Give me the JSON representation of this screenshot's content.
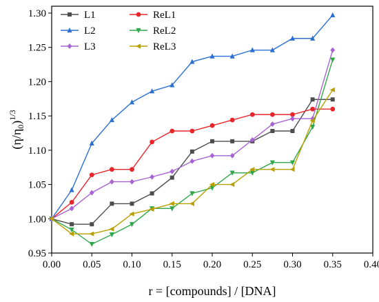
{
  "chart_data": {
    "type": "line",
    "xlabel": "r = [compounds] / [DNA]",
    "ylabel_main": "(η/η",
    "ylabel_sub": "0",
    "ylabel_close": ")",
    "ylabel_sup": "1/3",
    "xlim": [
      0.0,
      0.4
    ],
    "ylim": [
      0.95,
      1.31
    ],
    "xticks": [
      "0.00",
      "0.05",
      "0.10",
      "0.15",
      "0.20",
      "0.25",
      "0.30",
      "0.35",
      "0.40"
    ],
    "yticks": [
      "0.95",
      "1.00",
      "1.05",
      "1.10",
      "1.15",
      "1.20",
      "1.25",
      "1.30"
    ],
    "grid": false,
    "legend_position": "top-left",
    "x": [
      0.0,
      0.025,
      0.05,
      0.075,
      0.1,
      0.125,
      0.15,
      0.175,
      0.2,
      0.225,
      0.25,
      0.275,
      0.3,
      0.325,
      0.35
    ],
    "series": [
      {
        "name": "L1",
        "color": "#4d4d4d",
        "marker": "square",
        "values": [
          1.0,
          0.992,
          0.992,
          1.022,
          1.022,
          1.037,
          1.06,
          1.098,
          1.113,
          1.113,
          1.113,
          1.128,
          1.128,
          1.174,
          1.174
        ]
      },
      {
        "name": "ReL1",
        "color": "#e8262a",
        "marker": "circle",
        "values": [
          1.0,
          1.024,
          1.064,
          1.072,
          1.072,
          1.112,
          1.128,
          1.128,
          1.136,
          1.144,
          1.152,
          1.152,
          1.152,
          1.16,
          1.16
        ]
      },
      {
        "name": "L2",
        "color": "#2b6fd1",
        "marker": "triangle-up",
        "values": [
          1.0,
          1.042,
          1.11,
          1.144,
          1.17,
          1.186,
          1.195,
          1.229,
          1.237,
          1.237,
          1.246,
          1.246,
          1.263,
          1.263,
          1.297
        ]
      },
      {
        "name": "ReL2",
        "color": "#2ea84b",
        "marker": "triangle-down",
        "values": [
          1.0,
          0.984,
          0.963,
          0.977,
          0.992,
          1.015,
          1.015,
          1.037,
          1.045,
          1.067,
          1.067,
          1.082,
          1.082,
          1.134,
          1.232
        ]
      },
      {
        "name": "L3",
        "color": "#a763d3",
        "marker": "diamond",
        "values": [
          1.0,
          1.015,
          1.038,
          1.054,
          1.054,
          1.061,
          1.069,
          1.084,
          1.092,
          1.092,
          1.115,
          1.138,
          1.146,
          1.146,
          1.246
        ]
      },
      {
        "name": "ReL3",
        "color": "#b9a000",
        "marker": "triangle-left",
        "values": [
          1.0,
          0.978,
          0.978,
          0.985,
          1.007,
          1.014,
          1.022,
          1.022,
          1.05,
          1.05,
          1.072,
          1.072,
          1.072,
          1.143,
          1.188
        ]
      }
    ],
    "legend_order": [
      "L1",
      "ReL1",
      "L2",
      "ReL2",
      "L3",
      "ReL3"
    ]
  }
}
